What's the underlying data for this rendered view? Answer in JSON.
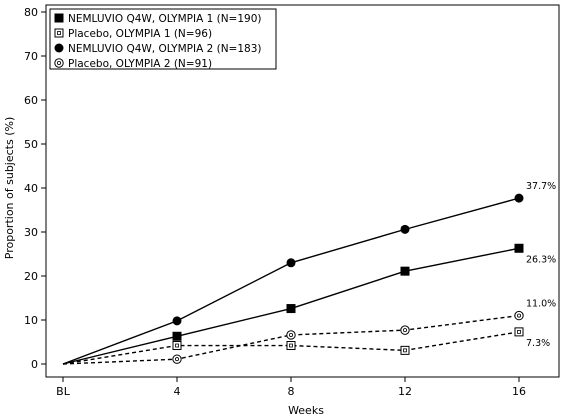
{
  "chart_data": {
    "type": "line",
    "xlabel": "Weeks",
    "ylabel": "Proportion of subjects (%)",
    "categories": [
      "BL",
      "4",
      "8",
      "12",
      "16"
    ],
    "ylim": [
      0,
      80
    ],
    "yticks": [
      "0",
      "10",
      "20",
      "30",
      "40",
      "50",
      "60",
      "70",
      "80"
    ],
    "grid": false,
    "legend_position": "top-left",
    "series": [
      {
        "name": "NEMLUVIO Q4W, OLYMPIA 1 (N=190)",
        "values": [
          0,
          6.3,
          12.6,
          21.1,
          26.3
        ],
        "marker": "filled-square",
        "line": "solid",
        "color": "#000000",
        "end_label": "26.3%"
      },
      {
        "name": "Placebo, OLYMPIA 1 (N=96)",
        "values": [
          0,
          4.2,
          4.2,
          3.1,
          7.3
        ],
        "marker": "open-square",
        "line": "dashed",
        "color": "#000000",
        "end_label": "7.3%"
      },
      {
        "name": "NEMLUVIO Q4W, OLYMPIA 2 (N=183)",
        "values": [
          0,
          9.8,
          23.0,
          30.6,
          37.7
        ],
        "marker": "filled-circle",
        "line": "solid",
        "color": "#000000",
        "end_label": "37.7%"
      },
      {
        "name": "Placebo, OLYMPIA 2 (N=91)",
        "values": [
          0,
          1.1,
          6.6,
          7.7,
          11.0
        ],
        "marker": "open-circle",
        "line": "dashed",
        "color": "#000000",
        "end_label": "11.0%"
      }
    ]
  }
}
